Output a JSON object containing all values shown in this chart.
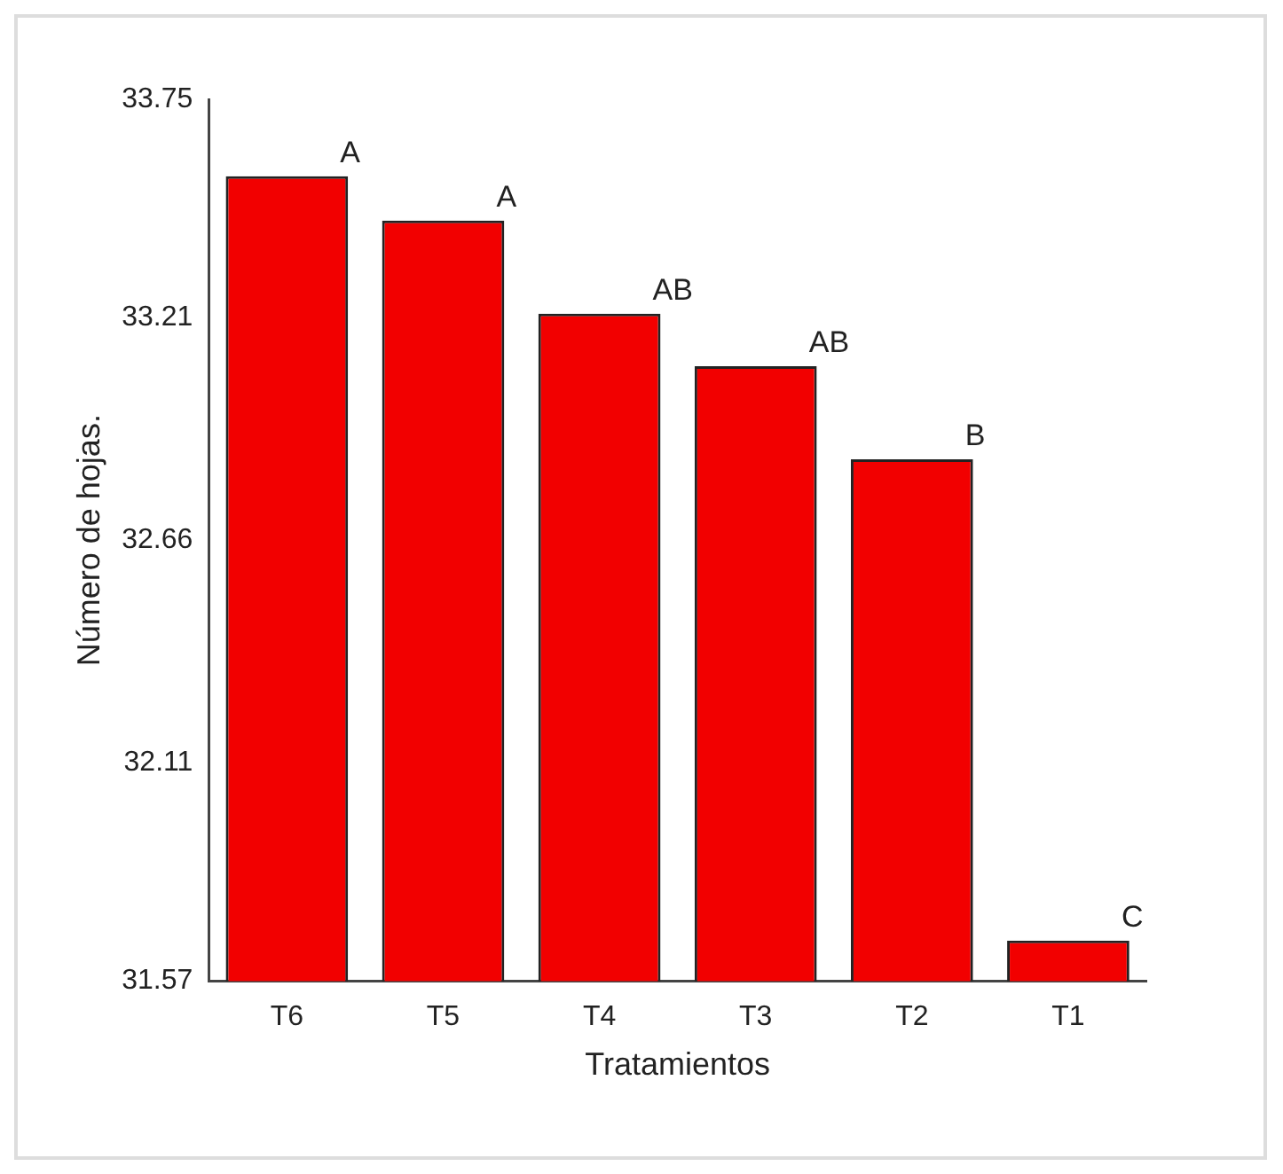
{
  "chart_data": {
    "type": "bar",
    "xlabel": "Tratamientos",
    "ylabel": "Número de hojas.",
    "categories": [
      "T6",
      "T5",
      "T4",
      "T3",
      "T2",
      "T1"
    ],
    "values": [
      33.56,
      33.45,
      33.22,
      33.09,
      32.86,
      31.67
    ],
    "color": "#f20000",
    "ylim": [
      31.57,
      33.75
    ],
    "yticks": [
      31.57,
      32.11,
      32.66,
      33.21,
      33.75
    ],
    "grid": false,
    "annotations": [
      {
        "text": "A",
        "x": "T6",
        "y": 33.56
      },
      {
        "text": "A",
        "x": "T5",
        "y": 33.45
      },
      {
        "text": "AB",
        "x": "T4",
        "y": 33.22
      },
      {
        "text": "AB",
        "x": "T3",
        "y": 33.09
      },
      {
        "text": "B",
        "x": "T2",
        "y": 32.86
      },
      {
        "text": "C",
        "x": "T1",
        "y": 31.67
      }
    ]
  }
}
